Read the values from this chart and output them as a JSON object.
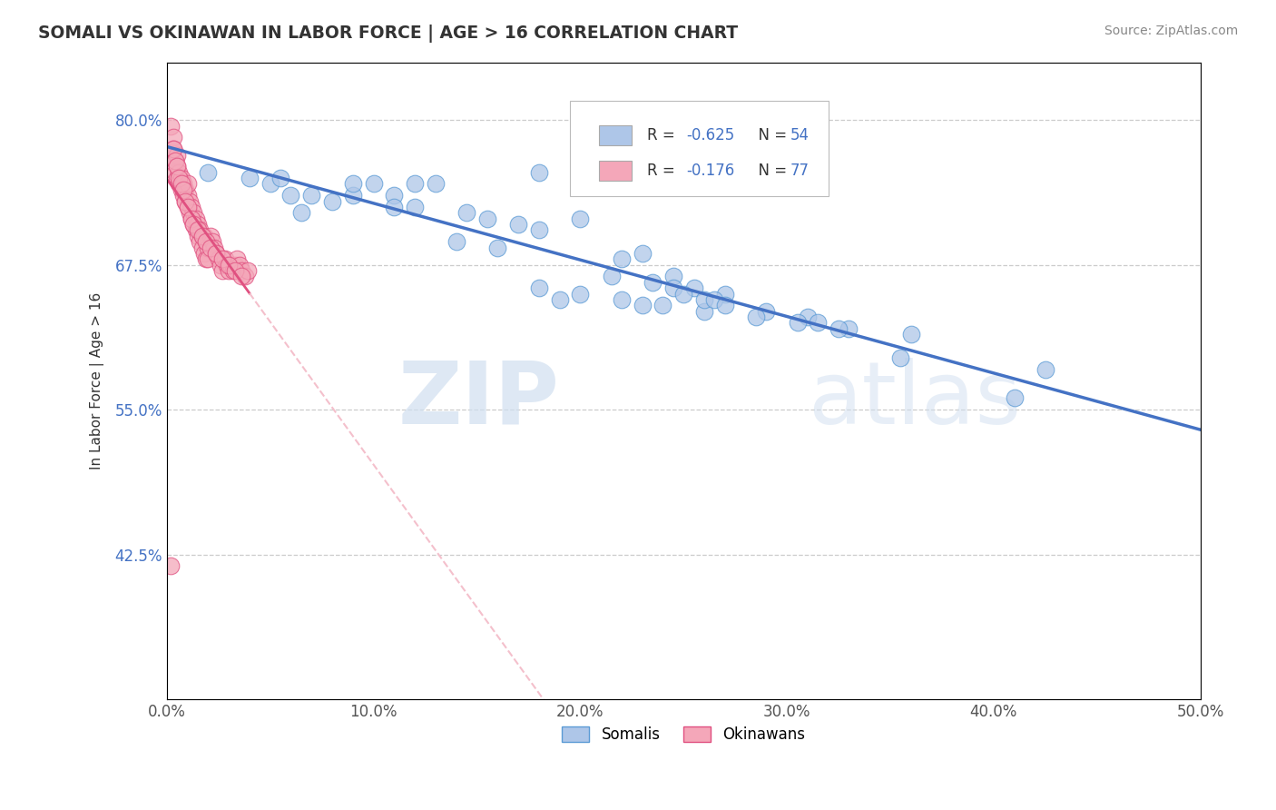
{
  "title": "SOMALI VS OKINAWAN IN LABOR FORCE | AGE > 16 CORRELATION CHART",
  "source_text": "Source: ZipAtlas.com",
  "ylabel": "In Labor Force | Age > 16",
  "xlim": [
    0.0,
    0.5
  ],
  "ylim": [
    0.3,
    0.85
  ],
  "yticks": [
    0.425,
    0.55,
    0.675,
    0.8
  ],
  "ytick_labels": [
    "42.5%",
    "55.0%",
    "67.5%",
    "80.0%"
  ],
  "xticks": [
    0.0,
    0.1,
    0.2,
    0.3,
    0.4,
    0.5
  ],
  "xtick_labels": [
    "0.0%",
    "10.0%",
    "20.0%",
    "30.0%",
    "40.0%",
    "50.0%"
  ],
  "somali_color": "#aec6e8",
  "somali_edge": "#5b9bd5",
  "okinawan_color": "#f4a7b9",
  "okinawan_edge": "#e05080",
  "trend_somali_color": "#4472c4",
  "trend_okinawan_color": "#e05080",
  "trend_okinawan_dashed_color": "#f4c0cc",
  "r_somali": -0.625,
  "n_somali": 54,
  "r_okinawan": -0.176,
  "n_okinawan": 77,
  "watermark_zip": "ZIP",
  "watermark_atlas": "atlas",
  "background_color": "#ffffff",
  "legend_label_somali": "Somalis",
  "legend_label_okinawan": "Okinawans",
  "somali_x": [
    0.02,
    0.18,
    0.06,
    0.09,
    0.05,
    0.04,
    0.055,
    0.07,
    0.09,
    0.1,
    0.11,
    0.12,
    0.13,
    0.11,
    0.08,
    0.065,
    0.12,
    0.145,
    0.155,
    0.17,
    0.18,
    0.2,
    0.14,
    0.16,
    0.23,
    0.22,
    0.245,
    0.255,
    0.27,
    0.18,
    0.2,
    0.22,
    0.24,
    0.29,
    0.31,
    0.315,
    0.33,
    0.36,
    0.19,
    0.23,
    0.26,
    0.285,
    0.305,
    0.325,
    0.425,
    0.215,
    0.235,
    0.245,
    0.25,
    0.26,
    0.265,
    0.27,
    0.41,
    0.355
  ],
  "somali_y": [
    0.755,
    0.755,
    0.735,
    0.735,
    0.745,
    0.75,
    0.75,
    0.735,
    0.745,
    0.745,
    0.735,
    0.745,
    0.745,
    0.725,
    0.73,
    0.72,
    0.725,
    0.72,
    0.715,
    0.71,
    0.705,
    0.715,
    0.695,
    0.69,
    0.685,
    0.68,
    0.665,
    0.655,
    0.65,
    0.655,
    0.65,
    0.645,
    0.64,
    0.635,
    0.63,
    0.625,
    0.62,
    0.615,
    0.645,
    0.64,
    0.635,
    0.63,
    0.625,
    0.62,
    0.585,
    0.665,
    0.66,
    0.655,
    0.65,
    0.645,
    0.645,
    0.64,
    0.56,
    0.595
  ],
  "okinawan_x": [
    0.002,
    0.003,
    0.003,
    0.004,
    0.004,
    0.005,
    0.005,
    0.005,
    0.006,
    0.006,
    0.007,
    0.007,
    0.008,
    0.008,
    0.009,
    0.009,
    0.01,
    0.01,
    0.01,
    0.011,
    0.011,
    0.012,
    0.012,
    0.013,
    0.013,
    0.014,
    0.014,
    0.015,
    0.015,
    0.016,
    0.016,
    0.017,
    0.017,
    0.018,
    0.018,
    0.019,
    0.019,
    0.02,
    0.02,
    0.021,
    0.022,
    0.023,
    0.024,
    0.025,
    0.026,
    0.027,
    0.028,
    0.029,
    0.03,
    0.031,
    0.032,
    0.033,
    0.034,
    0.035,
    0.036,
    0.038,
    0.039,
    0.003,
    0.004,
    0.005,
    0.006,
    0.007,
    0.008,
    0.009,
    0.01,
    0.012,
    0.013,
    0.015,
    0.017,
    0.019,
    0.021,
    0.024,
    0.027,
    0.03,
    0.033,
    0.036,
    0.002
  ],
  "okinawan_y": [
    0.795,
    0.785,
    0.775,
    0.765,
    0.755,
    0.77,
    0.76,
    0.75,
    0.755,
    0.745,
    0.75,
    0.74,
    0.745,
    0.735,
    0.74,
    0.73,
    0.735,
    0.745,
    0.725,
    0.73,
    0.72,
    0.725,
    0.715,
    0.72,
    0.71,
    0.715,
    0.705,
    0.71,
    0.7,
    0.705,
    0.695,
    0.7,
    0.69,
    0.7,
    0.685,
    0.695,
    0.68,
    0.69,
    0.68,
    0.7,
    0.695,
    0.69,
    0.685,
    0.68,
    0.675,
    0.67,
    0.68,
    0.675,
    0.67,
    0.675,
    0.67,
    0.675,
    0.68,
    0.675,
    0.67,
    0.665,
    0.67,
    0.775,
    0.765,
    0.76,
    0.75,
    0.745,
    0.74,
    0.73,
    0.725,
    0.715,
    0.71,
    0.705,
    0.7,
    0.695,
    0.69,
    0.685,
    0.68,
    0.675,
    0.67,
    0.665,
    0.415
  ],
  "okn_trend_solid_xlim": [
    0.0,
    0.04
  ],
  "okn_trend_dashed_xlim": [
    0.04,
    0.5
  ]
}
